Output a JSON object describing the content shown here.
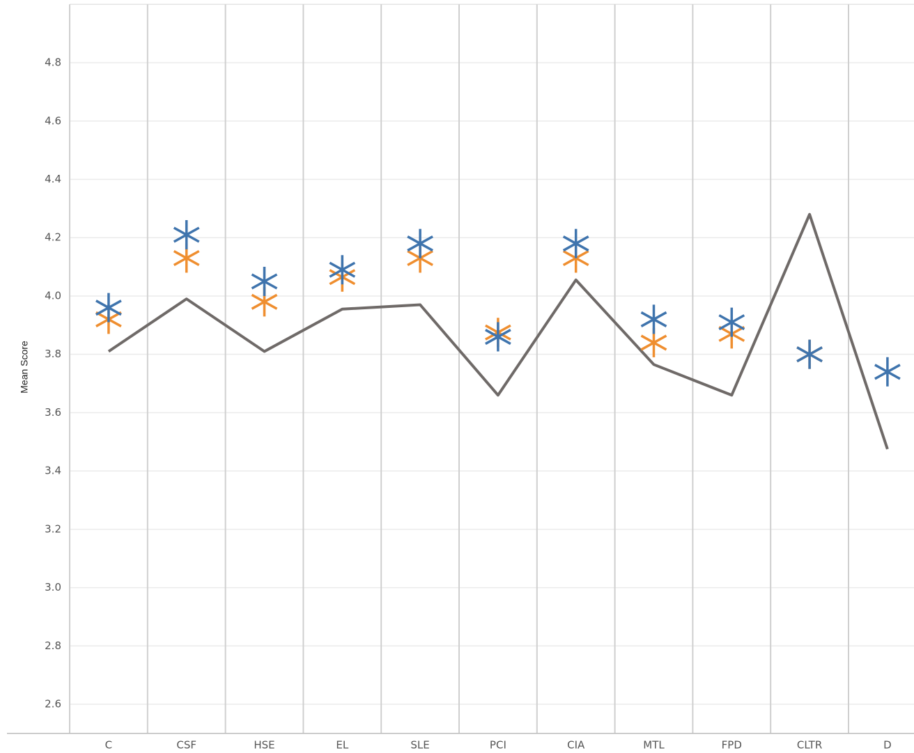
{
  "chart_data": {
    "type": "line",
    "y_label": "Mean Score",
    "categories": [
      "C",
      "CSF",
      "HSE",
      "EL",
      "SLE",
      "PCI",
      "CIA",
      "MTL",
      "FPD",
      "CLTR",
      "D"
    ],
    "series": [
      {
        "color": "#6f6a68",
        "values": [
          3.81,
          3.99,
          3.81,
          3.955,
          3.97,
          3.66,
          4.055,
          3.765,
          3.66,
          4.28,
          3.475
        ]
      },
      {
        "color": "#ef8e2f",
        "marker": "asterisk",
        "values": [
          3.92,
          4.13,
          3.98,
          4.065,
          4.13,
          3.875,
          4.13,
          3.84,
          3.87,
          3.8,
          null
        ]
      },
      {
        "color": "#3f74ad",
        "marker": "asterisk",
        "values": [
          3.96,
          4.21,
          4.05,
          4.09,
          4.18,
          3.86,
          4.18,
          3.92,
          3.91,
          3.8,
          3.74
        ]
      }
    ],
    "ylim": [
      2.5,
      5.0
    ],
    "yticks": [
      2.6,
      2.8,
      {
        "value": 3,
        "label": "3.0"
      },
      3.2,
      3.4,
      3.6,
      3.8,
      {
        "value": 4,
        "label": "4.0"
      },
      4.2,
      4.4,
      4.6,
      4.8
    ],
    "grid": true
  }
}
